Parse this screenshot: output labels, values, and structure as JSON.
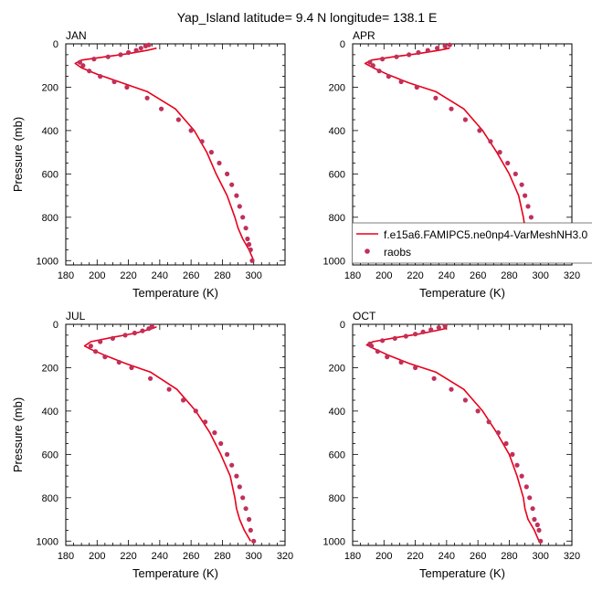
{
  "figure": {
    "title": "Yap_Island  latitude= 9.4 N longitude= 138.1 E"
  },
  "legend": {
    "model_label": "f.e15a6.FAMIPC5.ne0np4-VarMeshNH3.0",
    "obs_label": "raobs",
    "placement": "lower-right of APR panel, overlapping"
  },
  "colors": {
    "model_line": "#e8001a",
    "obs_marker": "#c0305a",
    "axis": "#000000"
  },
  "chart_data": [
    {
      "type": "line+scatter",
      "panel": "JAN",
      "xlabel": "Temperature (K)",
      "ylabel": "Pressure (mb)",
      "xlim": [
        180,
        320
      ],
      "ylim": [
        1020,
        0
      ],
      "x_ticks": [
        180,
        200,
        220,
        240,
        260,
        280,
        300
      ],
      "y_ticks": [
        0,
        200,
        400,
        600,
        800,
        1000
      ],
      "series": [
        {
          "name": "f.e15a6.FAMIPC5.ne0np4-VarMeshNH3.0",
          "kind": "line",
          "points": [
            [
              300,
              1000
            ],
            [
              297,
              950
            ],
            [
              293,
              900
            ],
            [
              290,
              850
            ],
            [
              288,
              800
            ],
            [
              283,
              700
            ],
            [
              276,
              600
            ],
            [
              270,
              500
            ],
            [
              262,
              400
            ],
            [
              250,
              300
            ],
            [
              232,
              220
            ],
            [
              216,
              180
            ],
            [
              200,
              140
            ],
            [
              190,
              110
            ],
            [
              186,
              90
            ],
            [
              190,
              75
            ],
            [
              205,
              60
            ],
            [
              220,
              45
            ],
            [
              232,
              30
            ],
            [
              238,
              20
            ]
          ]
        },
        {
          "name": "raobs",
          "kind": "scatter",
          "points": [
            [
              299,
              1000
            ],
            [
              298,
              950
            ],
            [
              297,
              925
            ],
            [
              296,
              900
            ],
            [
              295,
              850
            ],
            [
              293,
              800
            ],
            [
              291,
              750
            ],
            [
              289,
              700
            ],
            [
              286,
              650
            ],
            [
              283,
              600
            ],
            [
              278,
              550
            ],
            [
              273,
              500
            ],
            [
              267,
              450
            ],
            [
              260,
              400
            ],
            [
              252,
              350
            ],
            [
              241,
              300
            ],
            [
              232,
              250
            ],
            [
              219,
              200
            ],
            [
              211,
              175
            ],
            [
              202,
              150
            ],
            [
              195,
              125
            ],
            [
              191,
              100
            ],
            [
              189,
              85
            ],
            [
              198,
              70
            ],
            [
              207,
              60
            ],
            [
              215,
              50
            ],
            [
              220,
              40
            ],
            [
              225,
              30
            ],
            [
              228,
              20
            ],
            [
              231,
              10
            ],
            [
              233,
              5
            ]
          ]
        }
      ]
    },
    {
      "type": "line+scatter",
      "panel": "APR",
      "xlabel": "Temperature (K)",
      "ylabel": "",
      "xlim": [
        180,
        320
      ],
      "ylim": [
        1020,
        0
      ],
      "x_ticks": [
        180,
        200,
        220,
        240,
        260,
        280,
        300,
        320
      ],
      "y_ticks": [
        0,
        200,
        400,
        600,
        800,
        1000
      ],
      "series": [
        {
          "name": "f.e15a6.FAMIPC5.ne0np4-VarMeshNH3.0",
          "kind": "line",
          "points": [
            [
              300,
              1000
            ],
            [
              296,
              950
            ],
            [
              292,
              900
            ],
            [
              290,
              850
            ],
            [
              289,
              800
            ],
            [
              286,
              700
            ],
            [
              280,
              600
            ],
            [
              272,
              500
            ],
            [
              263,
              400
            ],
            [
              251,
              300
            ],
            [
              233,
              220
            ],
            [
              216,
              180
            ],
            [
              202,
              140
            ],
            [
              193,
              110
            ],
            [
              188,
              90
            ],
            [
              192,
              75
            ],
            [
              206,
              60
            ],
            [
              222,
              45
            ],
            [
              235,
              30
            ],
            [
              242,
              20
            ]
          ]
        },
        {
          "name": "raobs",
          "kind": "scatter",
          "points": [
            [
              301,
              1000
            ],
            [
              299,
              950
            ],
            [
              298,
              925
            ],
            [
              297,
              900
            ],
            [
              296,
              850
            ],
            [
              294,
              800
            ],
            [
              292,
              750
            ],
            [
              290,
              700
            ],
            [
              288,
              650
            ],
            [
              284,
              600
            ],
            [
              279,
              550
            ],
            [
              274,
              500
            ],
            [
              268,
              450
            ],
            [
              261,
              400
            ],
            [
              252,
              350
            ],
            [
              243,
              300
            ],
            [
              233,
              250
            ],
            [
              221,
              200
            ],
            [
              211,
              175
            ],
            [
              203,
              150
            ],
            [
              197,
              125
            ],
            [
              193,
              100
            ],
            [
              191,
              85
            ],
            [
              199,
              70
            ],
            [
              208,
              60
            ],
            [
              216,
              50
            ],
            [
              222,
              40
            ],
            [
              228,
              30
            ],
            [
              234,
              20
            ],
            [
              239,
              10
            ],
            [
              242,
              5
            ]
          ]
        }
      ]
    },
    {
      "type": "line+scatter",
      "panel": "JUL",
      "xlabel": "Temperature (K)",
      "ylabel": "Pressure (mb)",
      "xlim": [
        180,
        320
      ],
      "ylim": [
        1020,
        0
      ],
      "x_ticks": [
        180,
        200,
        220,
        240,
        260,
        280,
        300,
        320
      ],
      "y_ticks": [
        0,
        200,
        400,
        600,
        800,
        1000
      ],
      "series": [
        {
          "name": "f.e15a6.FAMIPC5.ne0np4-VarMeshNH3.0",
          "kind": "line",
          "points": [
            [
              298,
              1000
            ],
            [
              294,
              950
            ],
            [
              291,
              900
            ],
            [
              289,
              850
            ],
            [
              288,
              800
            ],
            [
              285,
              700
            ],
            [
              279,
              600
            ],
            [
              272,
              500
            ],
            [
              263,
              400
            ],
            [
              251,
              300
            ],
            [
              234,
              220
            ],
            [
              218,
              180
            ],
            [
              204,
              140
            ],
            [
              196,
              115
            ],
            [
              192,
              100
            ],
            [
              196,
              80
            ],
            [
              210,
              60
            ],
            [
              225,
              40
            ],
            [
              235,
              20
            ],
            [
              238,
              12
            ]
          ]
        },
        {
          "name": "raobs",
          "kind": "scatter",
          "points": [
            [
              300,
              1000
            ],
            [
              298,
              950
            ],
            [
              297,
              900
            ],
            [
              295,
              850
            ],
            [
              293,
              800
            ],
            [
              291,
              750
            ],
            [
              289,
              700
            ],
            [
              286,
              650
            ],
            [
              283,
              600
            ],
            [
              279,
              550
            ],
            [
              275,
              500
            ],
            [
              269,
              450
            ],
            [
              263,
              400
            ],
            [
              255,
              350
            ],
            [
              246,
              300
            ],
            [
              234,
              250
            ],
            [
              222,
              200
            ],
            [
              214,
              175
            ],
            [
              205,
              150
            ],
            [
              199,
              125
            ],
            [
              196,
              100
            ],
            [
              202,
              80
            ],
            [
              210,
              65
            ],
            [
              218,
              50
            ],
            [
              224,
              40
            ],
            [
              229,
              30
            ],
            [
              233,
              20
            ],
            [
              235,
              10
            ]
          ]
        }
      ]
    },
    {
      "type": "line+scatter",
      "panel": "OCT",
      "xlabel": "Temperature (K)",
      "ylabel": "",
      "xlim": [
        180,
        320
      ],
      "ylim": [
        1020,
        0
      ],
      "x_ticks": [
        180,
        200,
        220,
        240,
        260,
        280,
        300,
        320
      ],
      "y_ticks": [
        0,
        200,
        400,
        600,
        800,
        1000
      ],
      "series": [
        {
          "name": "f.e15a6.FAMIPC5.ne0np4-VarMeshNH3.0",
          "kind": "line",
          "points": [
            [
              299,
              1000
            ],
            [
              296,
              950
            ],
            [
              292,
              900
            ],
            [
              290,
              850
            ],
            [
              289,
              800
            ],
            [
              285,
              700
            ],
            [
              280,
              600
            ],
            [
              272,
              500
            ],
            [
              263,
              400
            ],
            [
              251,
              300
            ],
            [
              233,
              220
            ],
            [
              216,
              180
            ],
            [
              202,
              140
            ],
            [
              193,
              110
            ],
            [
              189,
              95
            ],
            [
              193,
              80
            ],
            [
              207,
              62
            ],
            [
              222,
              45
            ],
            [
              234,
              28
            ],
            [
              240,
              18
            ]
          ]
        },
        {
          "name": "raobs",
          "kind": "scatter",
          "points": [
            [
              300,
              1000
            ],
            [
              299,
              950
            ],
            [
              298,
              925
            ],
            [
              296,
              900
            ],
            [
              295,
              850
            ],
            [
              293,
              800
            ],
            [
              291,
              750
            ],
            [
              288,
              700
            ],
            [
              285,
              650
            ],
            [
              282,
              600
            ],
            [
              278,
              550
            ],
            [
              273,
              500
            ],
            [
              267,
              450
            ],
            [
              260,
              400
            ],
            [
              252,
              350
            ],
            [
              243,
              300
            ],
            [
              232,
              250
            ],
            [
              220,
              200
            ],
            [
              211,
              175
            ],
            [
              202,
              150
            ],
            [
              196,
              125
            ],
            [
              192,
              100
            ],
            [
              191,
              90
            ],
            [
              199,
              75
            ],
            [
              207,
              65
            ],
            [
              214,
              55
            ],
            [
              220,
              45
            ],
            [
              225,
              35
            ],
            [
              230,
              25
            ],
            [
              235,
              15
            ],
            [
              239,
              8
            ]
          ]
        }
      ]
    }
  ]
}
